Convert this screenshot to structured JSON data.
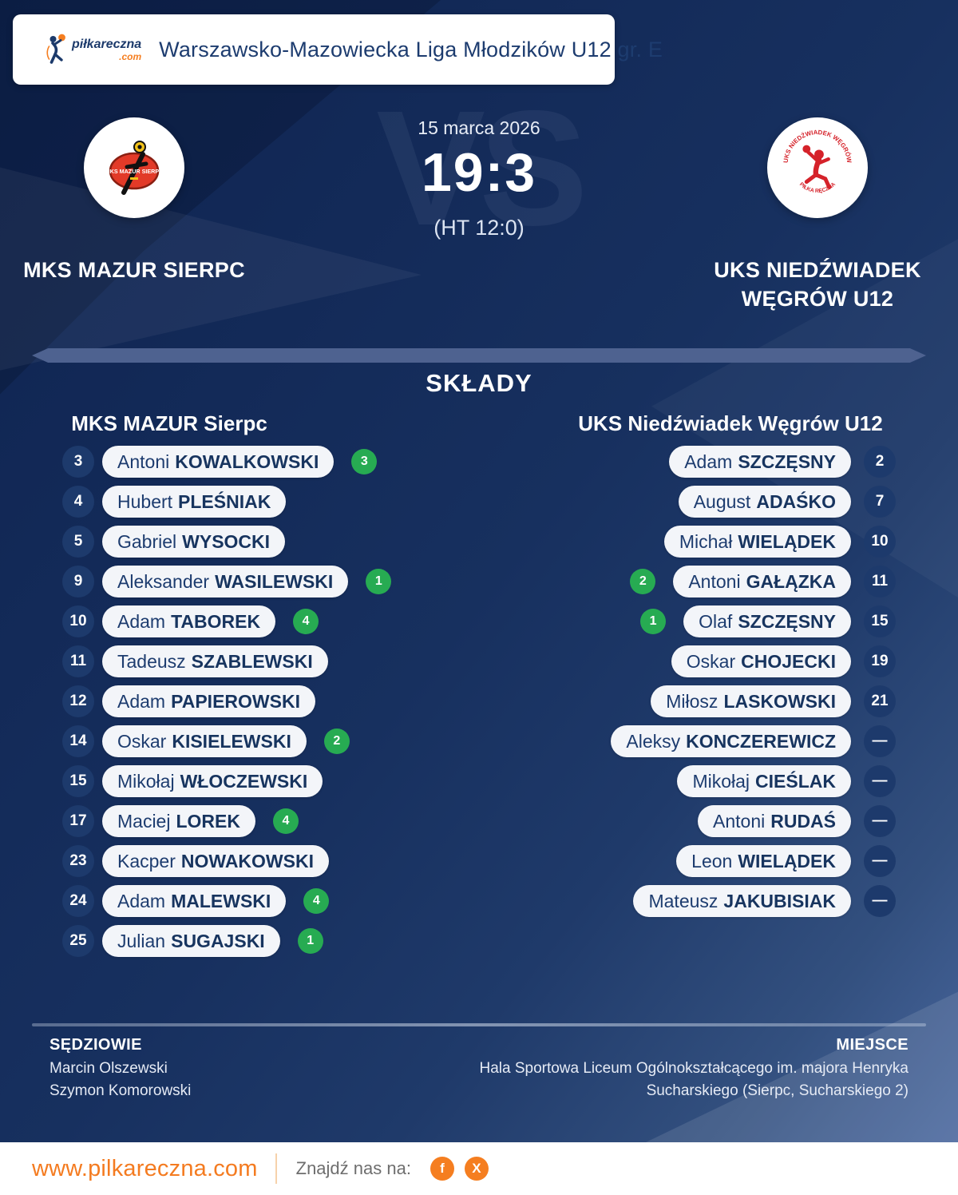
{
  "header": {
    "logo_text": "piłkareczna",
    "logo_tld": ".com",
    "league": "Warszawsko-Mazowiecka Liga Młodzików U12 gr. E"
  },
  "match": {
    "date": "15 marca 2026",
    "score": "19:3",
    "halftime": "(HT 12:0)",
    "vs_watermark": "VS",
    "home": {
      "name": "MKS MAZUR SIERPC",
      "crest_text": "MKS MAZUR SIERPC"
    },
    "away": {
      "name_line1": "UKS NIEDŹWIADEK",
      "name_line2": "WĘGRÓW U12",
      "crest_text_top": "UKS NIEDŹWIADEK WĘGRÓW",
      "crest_text_bottom": "PIŁKA RĘCZNA"
    }
  },
  "rosters": {
    "title": "SKŁADY",
    "home_team_label": "MKS MAZUR Sierpc",
    "away_team_label": "UKS Niedźwiadek Węgrów U12",
    "home_players": [
      {
        "number": "3",
        "first": "Antoni",
        "last": "KOWALKOWSKI",
        "goals": "3"
      },
      {
        "number": "4",
        "first": "Hubert",
        "last": "PLEŚNIAK",
        "goals": ""
      },
      {
        "number": "5",
        "first": "Gabriel",
        "last": "WYSOCKI",
        "goals": ""
      },
      {
        "number": "9",
        "first": "Aleksander",
        "last": "WASILEWSKI",
        "goals": "1"
      },
      {
        "number": "10",
        "first": "Adam",
        "last": "TABOREK",
        "goals": "4"
      },
      {
        "number": "11",
        "first": "Tadeusz",
        "last": "SZABLEWSKI",
        "goals": ""
      },
      {
        "number": "12",
        "first": "Adam",
        "last": "PAPIEROWSKI",
        "goals": ""
      },
      {
        "number": "14",
        "first": "Oskar",
        "last": "KISIELEWSKI",
        "goals": "2"
      },
      {
        "number": "15",
        "first": "Mikołaj",
        "last": "WŁOCZEWSKI",
        "goals": ""
      },
      {
        "number": "17",
        "first": "Maciej",
        "last": "LOREK",
        "goals": "4"
      },
      {
        "number": "23",
        "first": "Kacper",
        "last": "NOWAKOWSKI",
        "goals": ""
      },
      {
        "number": "24",
        "first": "Adam",
        "last": "MALEWSKI",
        "goals": "4"
      },
      {
        "number": "25",
        "first": "Julian",
        "last": "SUGAJSKI",
        "goals": "1"
      }
    ],
    "away_players": [
      {
        "number": "2",
        "first": "Adam",
        "last": "SZCZĘSNY",
        "goals": ""
      },
      {
        "number": "7",
        "first": "August",
        "last": "ADAŚKO",
        "goals": ""
      },
      {
        "number": "10",
        "first": "Michał",
        "last": "WIELĄDEK",
        "goals": ""
      },
      {
        "number": "11",
        "first": "Antoni",
        "last": "GAŁĄZKA",
        "goals": "2"
      },
      {
        "number": "15",
        "first": "Olaf",
        "last": "SZCZĘSNY",
        "goals": "1"
      },
      {
        "number": "19",
        "first": "Oskar",
        "last": "CHOJECKI",
        "goals": ""
      },
      {
        "number": "21",
        "first": "Miłosz",
        "last": "LASKOWSKI",
        "goals": ""
      },
      {
        "number": "—",
        "first": "Aleksy",
        "last": "KONCZEREWICZ",
        "goals": ""
      },
      {
        "number": "—",
        "first": "Mikołaj",
        "last": "CIEŚLAK",
        "goals": ""
      },
      {
        "number": "—",
        "first": "Antoni",
        "last": "RUDAŚ",
        "goals": ""
      },
      {
        "number": "—",
        "first": "Leon",
        "last": "WIELĄDEK",
        "goals": ""
      },
      {
        "number": "—",
        "first": "Mateusz",
        "last": "JAKUBISIAK",
        "goals": ""
      }
    ]
  },
  "officials": {
    "referees_label": "SĘDZIOWIE",
    "referees": [
      "Marcin Olszewski",
      "Szymon Komorowski"
    ],
    "venue_label": "MIEJSCE",
    "venue_line1": "Hala Sportowa Liceum Ogólnokształcącego im. majora Henryka",
    "venue_line2": "Sucharskiego (Sierpc, Sucharskiego 2)"
  },
  "footer": {
    "website": "www.pilkareczna.com",
    "find_us": "Znajdź nas na:",
    "social": [
      {
        "name": "facebook",
        "glyph": "f"
      },
      {
        "name": "x-twitter",
        "glyph": "X"
      }
    ]
  },
  "colors": {
    "accent_orange": "#F57E20",
    "goal_green": "#27AB52",
    "navy_text": "#1D3C6F",
    "page_navy": "#17305F",
    "pill_bg": "#F3F5F9",
    "divider_slate": "#4E6290",
    "crest_red": "#D5222A"
  }
}
